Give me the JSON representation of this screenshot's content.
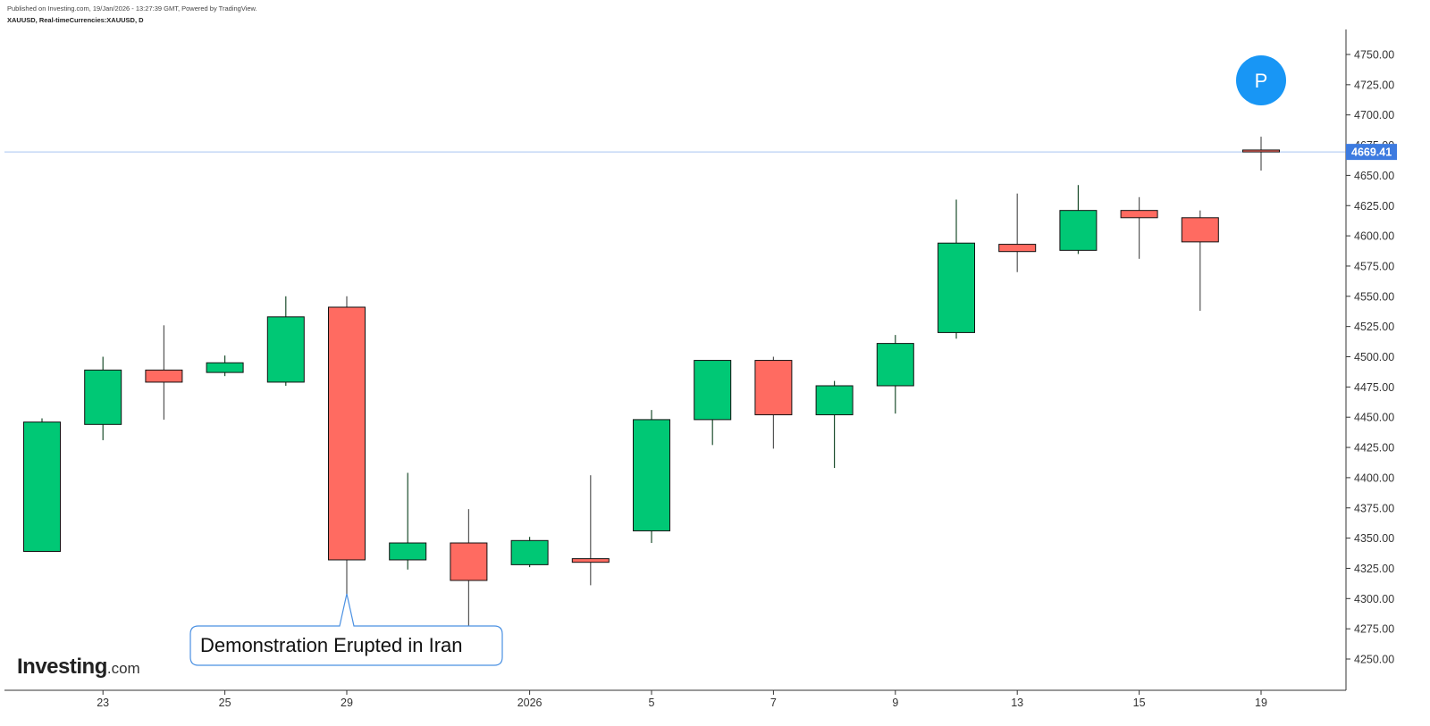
{
  "header": {
    "published": "Published on Investing.com, 19/Jan/2026 - 13:27:39 GMT, Powered by TradingView.",
    "symbol": "XAUUSD, Real-timeCurrencies:XAUUSD, D"
  },
  "logo": {
    "brand": "Investing",
    "suffix": ".com"
  },
  "colors": {
    "up": "#00c875",
    "down": "#ff6b61",
    "last_price": "#3d7be0",
    "annotation_border": "#4a90e2",
    "marker": "#1896f5"
  },
  "chart_data": {
    "type": "candlestick",
    "title": "XAUUSD, Real-timeCurrencies:XAUUSD, D",
    "ylim": [
      4230,
      4770
    ],
    "yticks": [
      4250,
      4275,
      4300,
      4325,
      4350,
      4375,
      4400,
      4425,
      4450,
      4475,
      4500,
      4525,
      4550,
      4575,
      4600,
      4625,
      4650,
      4675,
      4700,
      4725,
      4750
    ],
    "xticks": [
      {
        "index": 1,
        "label": "23"
      },
      {
        "index": 3,
        "label": "25"
      },
      {
        "index": 5,
        "label": "29"
      },
      {
        "index": 8,
        "label": "2026"
      },
      {
        "index": 10,
        "label": "5"
      },
      {
        "index": 12,
        "label": "7"
      },
      {
        "index": 14,
        "label": "9"
      },
      {
        "index": 16,
        "label": "13"
      },
      {
        "index": 18,
        "label": "15"
      },
      {
        "index": 20,
        "label": "19"
      }
    ],
    "candles": [
      {
        "date": "Dec 22",
        "open": 4339,
        "high": 4449,
        "low": 4339,
        "close": 4446
      },
      {
        "date": "Dec 23",
        "open": 4444,
        "high": 4500,
        "low": 4431,
        "close": 4489
      },
      {
        "date": "Dec 24",
        "open": 4489,
        "high": 4526,
        "low": 4448,
        "close": 4479
      },
      {
        "date": "Dec 25",
        "open": 4487,
        "high": 4501,
        "low": 4484,
        "close": 4495
      },
      {
        "date": "Dec 26",
        "open": 4479,
        "high": 4550,
        "low": 4476,
        "close": 4533
      },
      {
        "date": "Dec 29",
        "open": 4541,
        "high": 4550,
        "low": 4303,
        "close": 4332
      },
      {
        "date": "Dec 30",
        "open": 4332,
        "high": 4404,
        "low": 4324,
        "close": 4346
      },
      {
        "date": "Dec 31",
        "open": 4346,
        "high": 4374,
        "low": 4274,
        "close": 4315
      },
      {
        "date": "Jan 02",
        "open": 4328,
        "high": 4351,
        "low": 4326,
        "close": 4348
      },
      {
        "date": "Jan 04",
        "open": 4333,
        "high": 4402,
        "low": 4311,
        "close": 4330
      },
      {
        "date": "Jan 05",
        "open": 4356,
        "high": 4456,
        "low": 4346,
        "close": 4448
      },
      {
        "date": "Jan 06",
        "open": 4448,
        "high": 4497,
        "low": 4427,
        "close": 4497
      },
      {
        "date": "Jan 07",
        "open": 4497,
        "high": 4500,
        "low": 4424,
        "close": 4452
      },
      {
        "date": "Jan 08",
        "open": 4452,
        "high": 4480,
        "low": 4408,
        "close": 4476
      },
      {
        "date": "Jan 09",
        "open": 4476,
        "high": 4518,
        "low": 4453,
        "close": 4511
      },
      {
        "date": "Jan 12",
        "open": 4520,
        "high": 4630,
        "low": 4515,
        "close": 4594
      },
      {
        "date": "Jan 13",
        "open": 4593,
        "high": 4635,
        "low": 4570,
        "close": 4587
      },
      {
        "date": "Jan 14",
        "open": 4588,
        "high": 4642,
        "low": 4585,
        "close": 4621
      },
      {
        "date": "Jan 15",
        "open": 4621,
        "high": 4632,
        "low": 4581,
        "close": 4615
      },
      {
        "date": "Jan 16",
        "open": 4615,
        "high": 4621,
        "low": 4538,
        "close": 4595
      },
      {
        "date": "Jan 19",
        "open": 4671,
        "high": 4682,
        "low": 4654,
        "close": 4669.41
      }
    ],
    "last_price": {
      "value": 4669.41,
      "label": "4669.41"
    },
    "annotation": {
      "text": "Demonstration Erupted in Iran",
      "points_to_index": 5
    },
    "marker": {
      "text": "P",
      "index": 20
    }
  }
}
